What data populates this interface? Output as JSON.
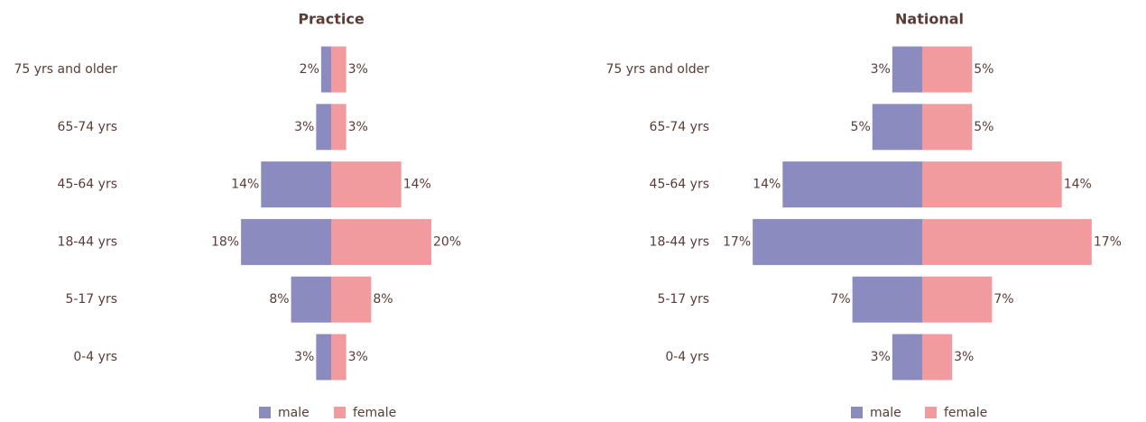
{
  "chart_data": [
    {
      "type": "bar",
      "orientation": "diverging",
      "title": "Practice",
      "categories": [
        "75 yrs and older",
        "65-74 yrs",
        "45-64 yrs",
        "18-44 yrs",
        "5-17 yrs",
        "0-4 yrs"
      ],
      "series": [
        {
          "name": "male",
          "color": "#8b8bbf",
          "values": [
            2,
            3,
            14,
            18,
            8,
            3
          ],
          "value_labels": [
            "2%",
            "3%",
            "14%",
            "18%",
            "8%",
            "3%"
          ]
        },
        {
          "name": "female",
          "color": "#f29b9e",
          "values": [
            3,
            3,
            14,
            20,
            8,
            3
          ],
          "value_labels": [
            "3%",
            "3%",
            "14%",
            "20%",
            "8%",
            "3%"
          ]
        }
      ],
      "legend": "bottom"
    },
    {
      "type": "bar",
      "orientation": "diverging",
      "title": "National",
      "categories": [
        "75 yrs and older",
        "65-74 yrs",
        "45-64 yrs",
        "18-44 yrs",
        "5-17 yrs",
        "0-4 yrs"
      ],
      "series": [
        {
          "name": "male",
          "color": "#8b8bbf",
          "values": [
            3,
            5,
            14,
            17,
            7,
            3
          ],
          "value_labels": [
            "3%",
            "5%",
            "14%",
            "17%",
            "7%",
            "3%"
          ]
        },
        {
          "name": "female",
          "color": "#f29b9e",
          "values": [
            5,
            5,
            14,
            17,
            7,
            3
          ],
          "value_labels": [
            "5%",
            "5%",
            "14%",
            "17%",
            "7%",
            "3%"
          ]
        }
      ],
      "legend": "bottom"
    }
  ]
}
